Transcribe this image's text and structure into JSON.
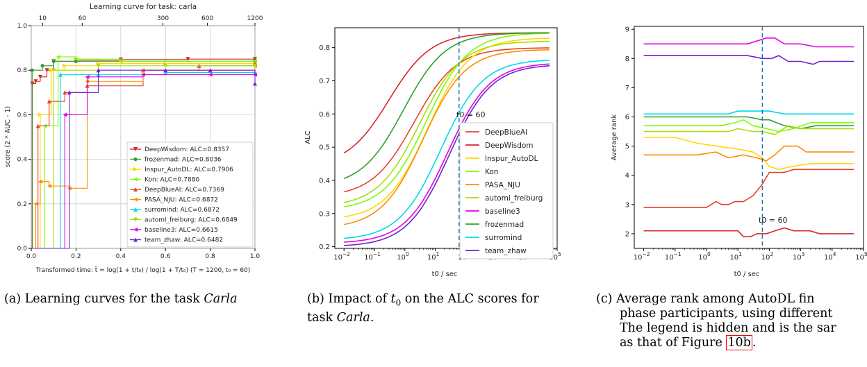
{
  "chart_data": [
    {
      "type": "line",
      "title": "Learning curve for task: carla",
      "ylabel": "score (2 * AUC - 1)",
      "xlabel": "Transformed time: t̃ = log(1 + t/t₀) / log(1 + T/t₀)  (T = 1200,  t₀ = 60)",
      "xlim": [
        0,
        1
      ],
      "ylim": [
        0,
        1
      ],
      "xticks": [
        "0.0",
        "0.2",
        "0.4",
        "0.6",
        "0.8",
        "1.0"
      ],
      "yticks": [
        "0.0",
        "0.2",
        "0.4",
        "0.6",
        "0.8",
        "1.0"
      ],
      "top_ticks": [
        "10",
        "60",
        "300",
        "600",
        "1200"
      ],
      "top_tick_seconds": [
        10,
        60,
        300,
        600,
        1200
      ],
      "grid": true,
      "legend_position": "lower right",
      "series": [
        {
          "name": "DeepWisdom: ALC=0.8357",
          "color": "#d62728",
          "marker": "v",
          "points": [
            [
              0,
              0
            ],
            [
              0.005,
              0.74
            ],
            [
              0.02,
              0.75
            ],
            [
              0.04,
              0.77
            ],
            [
              0.07,
              0.8
            ],
            [
              0.1,
              0.84
            ],
            [
              0.2,
              0.845
            ],
            [
              0.4,
              0.848
            ],
            [
              0.7,
              0.85
            ],
            [
              1.0,
              0.85
            ]
          ]
        },
        {
          "name": "frozenmad: ALC=0.8036",
          "color": "#2ca02c",
          "marker": "*",
          "points": [
            [
              0,
              0
            ],
            [
              0.004,
              0.8
            ],
            [
              0.05,
              0.82
            ],
            [
              0.1,
              0.84
            ],
            [
              0.2,
              0.84
            ],
            [
              1.0,
              0.845
            ]
          ]
        },
        {
          "name": "Inspur_AutoDL: ALC=0.7906",
          "color": "#ffd700",
          "marker": ">",
          "points": [
            [
              0,
              0
            ],
            [
              0.04,
              0.6
            ],
            [
              0.09,
              0.8
            ],
            [
              0.15,
              0.82
            ],
            [
              0.3,
              0.83
            ],
            [
              0.6,
              0.83
            ],
            [
              1.0,
              0.83
            ]
          ]
        },
        {
          "name": "Kon: ALC=0.7880",
          "color": "#7cfc00",
          "marker": "<",
          "points": [
            [
              0,
              0
            ],
            [
              0.06,
              0.55
            ],
            [
              0.12,
              0.86
            ],
            [
              0.2,
              0.85
            ],
            [
              0.4,
              0.84
            ],
            [
              1.0,
              0.84
            ]
          ]
        },
        {
          "name": "DeepBlueAI: ALC=0.7369",
          "color": "#e8402a",
          "marker": "^",
          "points": [
            [
              0,
              0
            ],
            [
              0.03,
              0.55
            ],
            [
              0.08,
              0.66
            ],
            [
              0.15,
              0.7
            ],
            [
              0.25,
              0.73
            ],
            [
              0.5,
              0.8
            ],
            [
              0.75,
              0.82
            ],
            [
              1.0,
              0.83
            ]
          ]
        },
        {
          "name": "PASA_NJU: ALC=0.6872",
          "color": "#ff8c00",
          "marker": "<",
          "points": [
            [
              0,
              0
            ],
            [
              0.02,
              0.2
            ],
            [
              0.04,
              0.3
            ],
            [
              0.08,
              0.28
            ],
            [
              0.17,
              0.27
            ],
            [
              0.25,
              0.75
            ],
            [
              0.5,
              0.8
            ],
            [
              1.0,
              0.82
            ]
          ]
        },
        {
          "name": "surromind: ALC=0.6872",
          "color": "#00d8e8",
          "marker": "^",
          "points": [
            [
              0,
              0
            ],
            [
              0.13,
              0.78
            ],
            [
              0.3,
              0.78
            ],
            [
              0.6,
              0.79
            ],
            [
              1.0,
              0.79
            ]
          ]
        },
        {
          "name": "automl_freiburg: ALC=0.6849",
          "color": "#a8e000",
          "marker": "v",
          "points": [
            [
              0,
              0
            ],
            [
              0.1,
              0.8
            ],
            [
              0.3,
              0.82
            ],
            [
              0.6,
              0.82
            ],
            [
              1.0,
              0.82
            ]
          ]
        },
        {
          "name": "baseline3: ALC=0.6615",
          "color": "#e000e0",
          "marker": "<",
          "points": [
            [
              0,
              0
            ],
            [
              0.15,
              0.6
            ],
            [
              0.25,
              0.77
            ],
            [
              0.5,
              0.78
            ],
            [
              0.8,
              0.78
            ],
            [
              1.0,
              0.78
            ]
          ]
        },
        {
          "name": "team_zhaw: ALC=0.6482",
          "color": "#7020d0",
          "marker": "^",
          "points": [
            [
              0,
              0
            ],
            [
              0.17,
              0.7
            ],
            [
              0.3,
              0.8
            ],
            [
              0.6,
              0.8
            ],
            [
              0.8,
              0.8
            ],
            [
              1.0,
              0.74
            ]
          ]
        }
      ]
    },
    {
      "type": "line",
      "title": "",
      "xlabel": "t0 / sec",
      "ylabel": "ALC",
      "xscale": "log",
      "xlim": [
        0.005,
        100000
      ],
      "ylim": [
        0.195,
        0.86
      ],
      "xticks": [
        "10",
        "10",
        "10",
        "10",
        "10",
        "10",
        "10",
        "10"
      ],
      "xtick_exponents": [
        "−2",
        "−1",
        "0",
        "1",
        "2",
        "3",
        "4",
        "5"
      ],
      "yticks": [
        "0.2",
        "0.3",
        "0.4",
        "0.5",
        "0.6",
        "0.7",
        "0.8"
      ],
      "vline_x": 60,
      "vline_label": "t0 = 60",
      "legend_position": "lower right",
      "series": [
        {
          "name": "DeepBlueAI",
          "color": "#e8402a",
          "lo": 0.35,
          "hi": 0.8,
          "mid": 2.0
        },
        {
          "name": "DeepWisdom",
          "color": "#d62728",
          "lo": 0.44,
          "hi": 0.845,
          "mid": 0.3
        },
        {
          "name": "Inspur_AutoDL",
          "color": "#ffd700",
          "lo": 0.28,
          "hi": 0.83,
          "mid": 5.5
        },
        {
          "name": "Kon",
          "color": "#7cfc00",
          "lo": 0.31,
          "hi": 0.845,
          "mid": 5.0
        },
        {
          "name": "PASA_NJU",
          "color": "#ff8c00",
          "lo": 0.255,
          "hi": 0.795,
          "mid": 4.0
        },
        {
          "name": "automl_freiburg",
          "color": "#a8e000",
          "lo": 0.32,
          "hi": 0.82,
          "mid": 3.0
        },
        {
          "name": "baseline3",
          "color": "#e000e0",
          "lo": 0.21,
          "hi": 0.755,
          "mid": 25
        },
        {
          "name": "frozenmad",
          "color": "#2ca02c",
          "lo": 0.38,
          "hi": 0.845,
          "mid": 0.9
        },
        {
          "name": "surromind",
          "color": "#00d8e8",
          "lo": 0.22,
          "hi": 0.765,
          "mid": 15
        },
        {
          "name": "team_zhaw",
          "color": "#7020d0",
          "lo": 0.2,
          "hi": 0.75,
          "mid": 28
        }
      ]
    },
    {
      "type": "line",
      "title": "",
      "xlabel": "t0 / sec",
      "ylabel": "Average rank",
      "xscale": "log",
      "xlim": [
        0.005,
        100000
      ],
      "ylim": [
        1.5,
        9.1
      ],
      "xticks": [
        "10",
        "10",
        "10",
        "10",
        "10",
        "10",
        "10",
        "10"
      ],
      "xtick_exponents": [
        "−2",
        "−1",
        "0",
        "1",
        "2",
        "3",
        "4",
        "5"
      ],
      "yticks": [
        "2",
        "3",
        "4",
        "5",
        "6",
        "7",
        "8",
        "9"
      ],
      "vline_x": 60,
      "vline_label": "t0 = 60",
      "series": [
        {
          "name": "baseline3",
          "color": "#e000e0",
          "points": [
            [
              0.01,
              8.5
            ],
            [
              5,
              8.5
            ],
            [
              20,
              8.5
            ],
            [
              40,
              8.6
            ],
            [
              80,
              8.7
            ],
            [
              150,
              8.7
            ],
            [
              300,
              8.5
            ],
            [
              1000,
              8.5
            ],
            [
              3000,
              8.4
            ],
            [
              50000,
              8.4
            ]
          ]
        },
        {
          "name": "team_zhaw",
          "color": "#7020d0",
          "points": [
            [
              0.01,
              8.1
            ],
            [
              20,
              8.1
            ],
            [
              60,
              8.0
            ],
            [
              120,
              8.0
            ],
            [
              200,
              8.1
            ],
            [
              400,
              7.9
            ],
            [
              1000,
              7.9
            ],
            [
              2500,
              7.8
            ],
            [
              4000,
              7.9
            ],
            [
              50000,
              7.9
            ]
          ]
        },
        {
          "name": "surromind",
          "color": "#00d8e8",
          "points": [
            [
              0.01,
              6.1
            ],
            [
              5,
              6.1
            ],
            [
              10,
              6.2
            ],
            [
              100,
              6.2
            ],
            [
              300,
              6.1
            ],
            [
              50000,
              6.1
            ]
          ]
        },
        {
          "name": "frozenmad",
          "color": "#2ca02c",
          "points": [
            [
              0.01,
              6.0
            ],
            [
              5,
              6.0
            ],
            [
              20,
              6.0
            ],
            [
              60,
              5.9
            ],
            [
              100,
              5.9
            ],
            [
              300,
              5.7
            ],
            [
              1000,
              5.6
            ],
            [
              3000,
              5.7
            ],
            [
              50000,
              5.7
            ]
          ]
        },
        {
          "name": "Kon",
          "color": "#7cfc00",
          "points": [
            [
              0.01,
              5.7
            ],
            [
              3,
              5.7
            ],
            [
              8,
              5.8
            ],
            [
              15,
              5.9
            ],
            [
              30,
              5.7
            ],
            [
              80,
              5.6
            ],
            [
              200,
              5.5
            ],
            [
              600,
              5.6
            ],
            [
              2000,
              5.8
            ],
            [
              50000,
              5.8
            ]
          ]
        },
        {
          "name": "automl_freiburg",
          "color": "#a8e000",
          "points": [
            [
              0.01,
              5.5
            ],
            [
              2,
              5.5
            ],
            [
              5,
              5.5
            ],
            [
              10,
              5.6
            ],
            [
              30,
              5.5
            ],
            [
              60,
              5.5
            ],
            [
              150,
              5.4
            ],
            [
              400,
              5.7
            ],
            [
              1000,
              5.6
            ],
            [
              50000,
              5.6
            ]
          ]
        },
        {
          "name": "Inspur_AutoDL",
          "color": "#ffd700",
          "points": [
            [
              0.01,
              5.3
            ],
            [
              0.1,
              5.3
            ],
            [
              0.5,
              5.1
            ],
            [
              2,
              5.0
            ],
            [
              10,
              4.9
            ],
            [
              30,
              4.8
            ],
            [
              60,
              4.6
            ],
            [
              100,
              4.3
            ],
            [
              200,
              4.2
            ],
            [
              500,
              4.3
            ],
            [
              2000,
              4.4
            ],
            [
              50000,
              4.4
            ]
          ]
        },
        {
          "name": "PASA_NJU",
          "color": "#ff8c00",
          "points": [
            [
              0.01,
              4.7
            ],
            [
              0.5,
              4.7
            ],
            [
              2,
              4.8
            ],
            [
              5,
              4.6
            ],
            [
              15,
              4.7
            ],
            [
              40,
              4.6
            ],
            [
              80,
              4.5
            ],
            [
              150,
              4.7
            ],
            [
              300,
              5.0
            ],
            [
              800,
              5.0
            ],
            [
              1500,
              4.8
            ],
            [
              50000,
              4.8
            ]
          ]
        },
        {
          "name": "DeepBlueAI",
          "color": "#e8402a",
          "points": [
            [
              0.01,
              2.9
            ],
            [
              1,
              2.9
            ],
            [
              2,
              3.1
            ],
            [
              3,
              3.0
            ],
            [
              5,
              3.0
            ],
            [
              8,
              3.1
            ],
            [
              15,
              3.1
            ],
            [
              30,
              3.3
            ],
            [
              60,
              3.7
            ],
            [
              100,
              4.1
            ],
            [
              300,
              4.1
            ],
            [
              600,
              4.2
            ],
            [
              50000,
              4.2
            ]
          ]
        },
        {
          "name": "DeepWisdom",
          "color": "#d62728",
          "points": [
            [
              0.01,
              2.1
            ],
            [
              5,
              2.1
            ],
            [
              10,
              2.1
            ],
            [
              15,
              1.9
            ],
            [
              25,
              1.9
            ],
            [
              40,
              2.0
            ],
            [
              80,
              2.0
            ],
            [
              150,
              2.1
            ],
            [
              300,
              2.2
            ],
            [
              600,
              2.1
            ],
            [
              2000,
              2.1
            ],
            [
              4000,
              2.0
            ],
            [
              50000,
              2.0
            ]
          ]
        }
      ]
    }
  ],
  "captions": {
    "a": {
      "prefix": "(a) Learning curves for the task ",
      "task": "Carla"
    },
    "b": {
      "line1_prefix": "(b) Impact of ",
      "t0": "t",
      "t0_sub": "0",
      "line1_suffix": " on the ALC scores for",
      "line2_task": "task ",
      "task": "Carla",
      "line2_end": "."
    },
    "c": {
      "line1": "(c) Average rank among AutoDL fin",
      "line2": "phase participants, using different",
      "line3": "The legend is hidden and is the sar",
      "line4_prefix": "as that of Figure ",
      "ref": "10b",
      "line4_end": "."
    }
  }
}
